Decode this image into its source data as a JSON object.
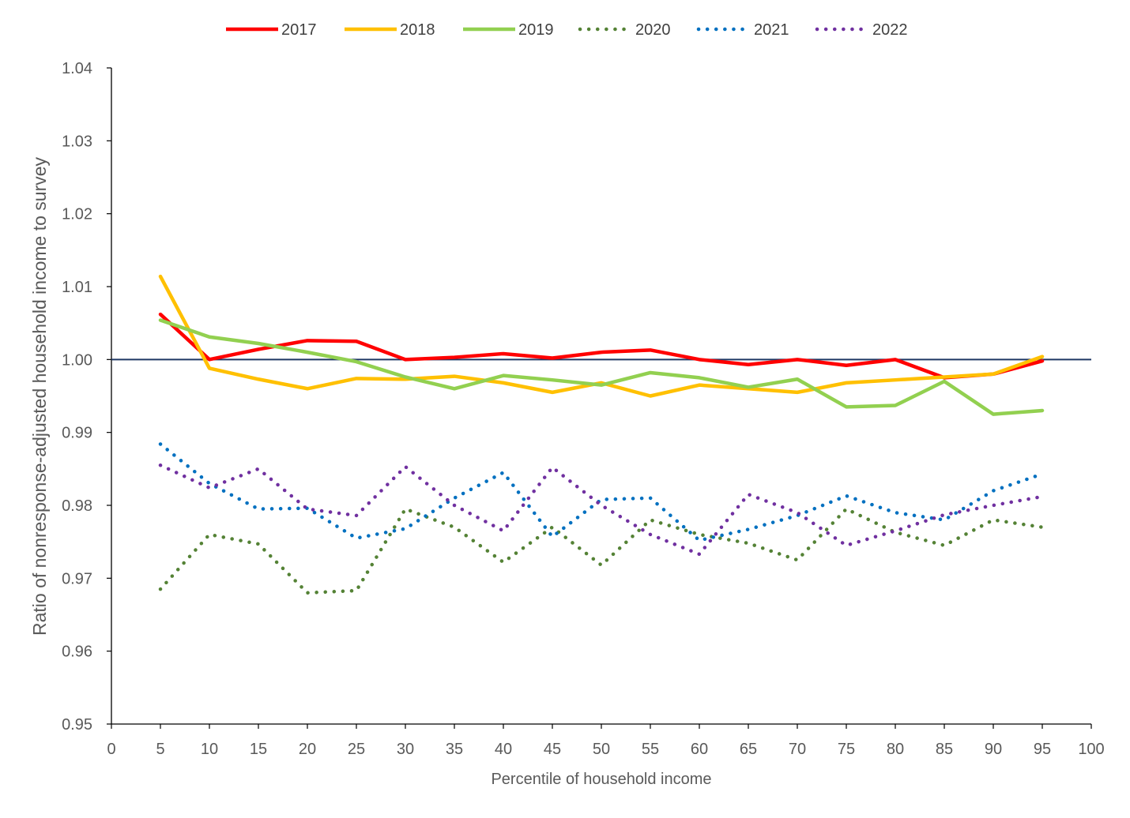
{
  "chart_data": {
    "type": "line",
    "title": "",
    "xlabel": "Percentile of household income",
    "ylabel": "Ratio of nonresponse-adjusted household income to survey",
    "xlim": [
      0,
      100
    ],
    "ylim": [
      0.95,
      1.04
    ],
    "x_ticks": [
      0,
      5,
      10,
      15,
      20,
      25,
      30,
      35,
      40,
      45,
      50,
      55,
      60,
      65,
      70,
      75,
      80,
      85,
      90,
      95,
      100
    ],
    "x_tick_labels": [
      "0",
      "5",
      "10",
      "15",
      "20",
      "25",
      "30",
      "35",
      "40",
      "45",
      "50",
      "55",
      "60",
      "65",
      "70",
      "75",
      "80",
      "85",
      "90",
      "95",
      "100"
    ],
    "y_ticks": [
      0.95,
      0.96,
      0.97,
      0.98,
      0.99,
      1.0,
      1.01,
      1.02,
      1.03,
      1.04
    ],
    "y_tick_labels": [
      "0.95",
      "0.96",
      "0.97",
      "0.98",
      "0.99",
      "1.00",
      "1.01",
      "1.02",
      "1.03",
      "1.04"
    ],
    "grid": false,
    "legend_position": "top",
    "reference_line": {
      "y": 1.0,
      "color": "#1F3864"
    },
    "x": [
      5,
      10,
      15,
      20,
      25,
      30,
      35,
      40,
      45,
      50,
      55,
      60,
      65,
      70,
      75,
      80,
      85,
      90,
      95
    ],
    "series": [
      {
        "name": "2017",
        "color": "#FF0000",
        "style": "solid",
        "values": [
          1.0062,
          1.0,
          1.0014,
          1.0026,
          1.0025,
          1.0,
          1.0003,
          1.0008,
          1.0002,
          1.001,
          1.0013,
          1.0,
          0.9993,
          1.0,
          0.9992,
          1.0,
          0.9975,
          0.998,
          0.9998
        ]
      },
      {
        "name": "2018",
        "color": "#FFC000",
        "style": "solid",
        "values": [
          1.0114,
          0.9988,
          0.9973,
          0.996,
          0.9974,
          0.9973,
          0.9977,
          0.9968,
          0.9955,
          0.9968,
          0.995,
          0.9965,
          0.996,
          0.9955,
          0.9968,
          0.9972,
          0.9976,
          0.998,
          1.0004
        ]
      },
      {
        "name": "2019",
        "color": "#92D050",
        "style": "solid",
        "values": [
          1.0054,
          1.0031,
          1.0022,
          1.001,
          0.9997,
          0.9976,
          0.996,
          0.9978,
          0.9972,
          0.9965,
          0.9982,
          0.9975,
          0.9962,
          0.9973,
          0.9935,
          0.9937,
          0.997,
          0.9925,
          0.993
        ]
      },
      {
        "name": "2020",
        "color": "#548235",
        "style": "dotted",
        "values": [
          0.9685,
          0.976,
          0.9747,
          0.968,
          0.9683,
          0.9795,
          0.977,
          0.9722,
          0.977,
          0.9718,
          0.978,
          0.976,
          0.9748,
          0.9725,
          0.9795,
          0.9763,
          0.9745,
          0.978,
          0.977
        ]
      },
      {
        "name": "2021",
        "color": "#0070C0",
        "style": "dotted",
        "values": [
          0.9884,
          0.983,
          0.9795,
          0.9796,
          0.9755,
          0.9768,
          0.981,
          0.9845,
          0.9757,
          0.9808,
          0.981,
          0.9752,
          0.9767,
          0.9786,
          0.9813,
          0.979,
          0.978,
          0.982,
          0.9843
        ]
      },
      {
        "name": "2022",
        "color": "#7030A0",
        "style": "dotted",
        "values": [
          0.9855,
          0.9824,
          0.985,
          0.9795,
          0.9786,
          0.9853,
          0.98,
          0.9765,
          0.9852,
          0.98,
          0.976,
          0.9733,
          0.9815,
          0.979,
          0.9745,
          0.9765,
          0.9787,
          0.98,
          0.9812
        ]
      }
    ]
  }
}
